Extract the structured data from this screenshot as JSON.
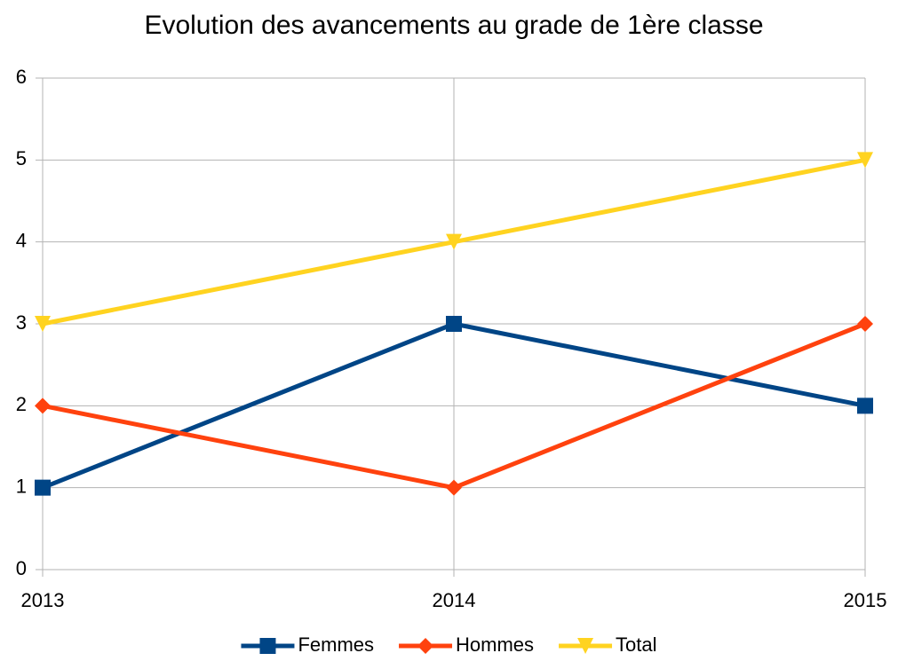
{
  "chart_data": {
    "type": "line",
    "title": "Evolution des avancements au grade de 1ère classe",
    "categories": [
      "2013",
      "2014",
      "2015"
    ],
    "series": [
      {
        "name": "Femmes",
        "color": "#004586",
        "marker": "square",
        "values": [
          1,
          3,
          2
        ]
      },
      {
        "name": "Hommes",
        "color": "#ff420e",
        "marker": "diamond",
        "values": [
          2,
          1,
          3
        ]
      },
      {
        "name": "Total",
        "color": "#ffd320",
        "marker": "triangle-down",
        "values": [
          3,
          4,
          5
        ]
      }
    ],
    "ylim": [
      0,
      6
    ],
    "yticks": [
      0,
      1,
      2,
      3,
      4,
      5,
      6
    ],
    "grid": true,
    "legend": "bottom"
  }
}
